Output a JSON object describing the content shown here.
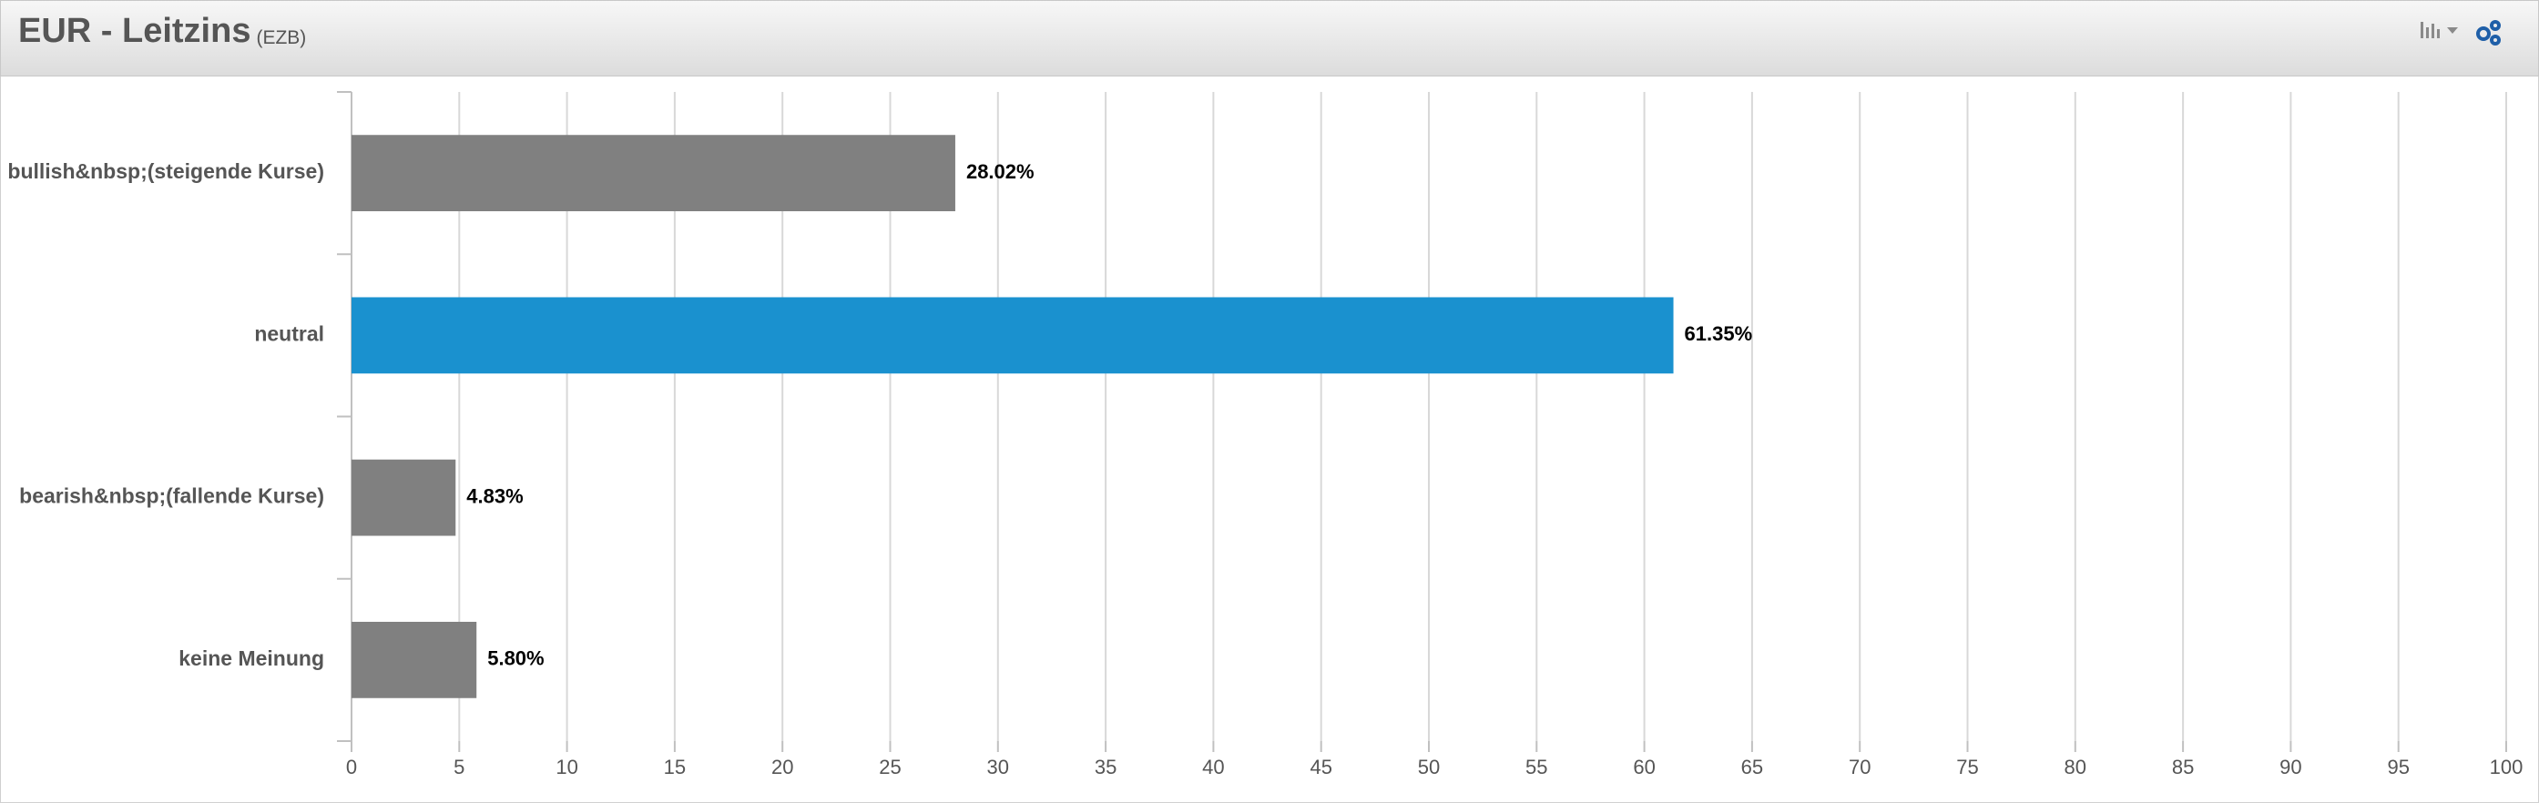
{
  "chart_data": {
    "type": "bar",
    "orientation": "horizontal",
    "title": "EUR - Leitzins",
    "subtitle": "(EZB)",
    "categories": [
      "bullish&nbsp;(steigende Kurse)",
      "neutral",
      "bearish&nbsp;(fallende Kurse)",
      "keine Meinung"
    ],
    "values": [
      28.02,
      61.35,
      4.83,
      5.8
    ],
    "value_labels": [
      "28.02%",
      "61.35%",
      "4.83%",
      "5.80%"
    ],
    "colors": [
      "#808080",
      "#1a91cf",
      "#808080",
      "#808080"
    ],
    "xlim": [
      0,
      100
    ],
    "xticks": [
      0,
      5,
      10,
      15,
      20,
      25,
      30,
      35,
      40,
      45,
      50,
      55,
      60,
      65,
      70,
      75,
      80,
      85,
      90,
      95,
      100
    ],
    "grid": true
  }
}
